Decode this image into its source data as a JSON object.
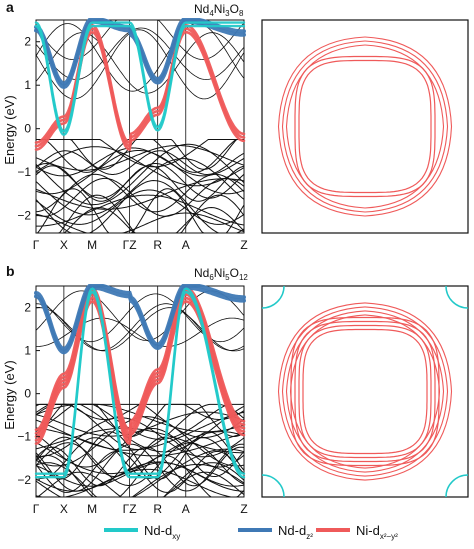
{
  "colors": {
    "nd_dxy": "#22c9c9",
    "nd_dz2": "#3f79b5",
    "ni_dx2y2": "#ef5a5a",
    "other": "#111111"
  },
  "chart_data": [
    {
      "type": "line",
      "panel": "a",
      "title_base": [
        "Nd",
        "Ni",
        "O"
      ],
      "title_sub": [
        "4",
        "3",
        "8"
      ],
      "ylabel": "Energy (eV)",
      "ylim": [
        -2.4,
        2.5
      ],
      "yticks": [
        "2",
        "1",
        "0",
        "−1",
        "−2"
      ],
      "ytick_values": [
        2,
        1,
        0,
        -1,
        -2
      ],
      "kpath": [
        "Γ",
        "X",
        "M",
        "Γ",
        "Z",
        "R",
        "A",
        "Z"
      ],
      "kpath_labels": [
        "Γ",
        "X",
        "M",
        "ΓZ",
        "R",
        "A",
        "Z"
      ],
      "fermi_surface_shown": true,
      "series": [
        {
          "name": "Ni-dx²−y²",
          "values_at_kpath": [
            -0.4,
            0.2,
            2.3,
            -0.4,
            -0.2,
            0.4,
            2.3,
            -0.2
          ]
        },
        {
          "name": "Nd-dz²",
          "values_at_kpath": [
            2.3,
            1.0,
            2.5,
            2.3,
            2.2,
            1.1,
            2.5,
            2.2
          ]
        },
        {
          "name": "Nd-dxy",
          "values_at_kpath": [
            2.4,
            -0.1,
            2.4,
            2.4,
            2.4,
            0.0,
            2.4,
            2.4
          ]
        }
      ]
    },
    {
      "type": "line",
      "panel": "b",
      "title_base": [
        "Nd",
        "Ni",
        "O"
      ],
      "title_sub": [
        "6",
        "5",
        "12"
      ],
      "ylabel": "Energy (eV)",
      "ylim": [
        -2.4,
        2.5
      ],
      "yticks": [
        "2",
        "1",
        "0",
        "−1",
        "−2"
      ],
      "ytick_values": [
        2,
        1,
        0,
        -1,
        -2
      ],
      "kpath": [
        "Γ",
        "X",
        "M",
        "Γ",
        "Z",
        "R",
        "A",
        "Z"
      ],
      "kpath_labels": [
        "Γ",
        "X",
        "M",
        "ΓZ",
        "R",
        "A",
        "Z"
      ],
      "fermi_surface_shown": true,
      "series": [
        {
          "name": "Ni-dx²−y²",
          "values_at_kpath": [
            -1.0,
            0.3,
            2.3,
            -1.0,
            -0.8,
            0.4,
            2.3,
            -0.8
          ]
        },
        {
          "name": "Nd-dz²",
          "values_at_kpath": [
            2.3,
            1.0,
            2.5,
            2.3,
            2.2,
            1.1,
            2.5,
            2.2
          ]
        },
        {
          "name": "Nd-dxy",
          "values_at_kpath": [
            -1.9,
            -1.9,
            2.4,
            -1.9,
            -1.9,
            -1.9,
            2.4,
            -1.9
          ]
        }
      ]
    }
  ],
  "legend": [
    {
      "base": "Nd-d",
      "sub": "xy",
      "sup": "",
      "color_key": "nd_dxy"
    },
    {
      "base": "Nd-d",
      "sub": "z²",
      "sup": "",
      "color_key": "nd_dz2"
    },
    {
      "base": "Ni-d",
      "sub": "x²−y²",
      "sup": "",
      "color_key": "ni_dx2y2"
    }
  ]
}
